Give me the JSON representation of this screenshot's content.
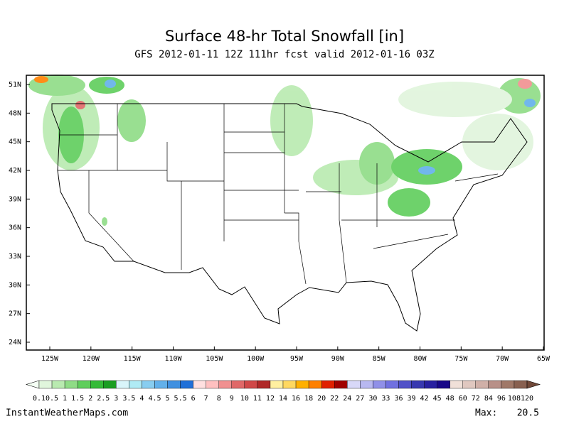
{
  "header": {
    "title": "Surface 48-hr Total Snowfall [in]",
    "subtitle": "GFS 2012-01-11 12Z 111hr fcst valid 2012-01-16 03Z"
  },
  "map": {
    "lat_labels": [
      "51N",
      "48N",
      "45N",
      "42N",
      "39N",
      "36N",
      "33N",
      "30N",
      "27N",
      "24N"
    ],
    "lon_labels": [
      "125W",
      "120W",
      "115W",
      "110W",
      "105W",
      "100W",
      "95W",
      "90W",
      "85W",
      "80W",
      "75W",
      "70W",
      "65W"
    ]
  },
  "legend": {
    "labels": [
      "0.1",
      "0.5",
      "1",
      "1.5",
      "2",
      "2.5",
      "3",
      "3.5",
      "4",
      "4.5",
      "5",
      "5.5",
      "6",
      "7",
      "8",
      "9",
      "10",
      "11",
      "12",
      "14",
      "16",
      "18",
      "20",
      "22",
      "24",
      "27",
      "30",
      "33",
      "36",
      "39",
      "42",
      "45",
      "48",
      "60",
      "72",
      "84",
      "96",
      "108",
      "120"
    ],
    "colors": [
      "#e0f5dc",
      "#b9eab0",
      "#8fdc86",
      "#5fce5c",
      "#35bb38",
      "#1a9e22",
      "#d9f5fa",
      "#b0ebf5",
      "#88cdf0",
      "#62b0ea",
      "#4090e0",
      "#2070d8",
      "#ffe0e0",
      "#ffc0c0",
      "#f09090",
      "#e06868",
      "#d04848",
      "#b02828",
      "#fff0a0",
      "#ffd860",
      "#ffb000",
      "#ff8000",
      "#e02000",
      "#a00000",
      "#d8d8f8",
      "#b8b8f0",
      "#9090e8",
      "#7070e0",
      "#5050c8",
      "#3838b0",
      "#2820a0",
      "#180888",
      "#f0e0d8",
      "#e0c8c0",
      "#d0b0a8",
      "#b89088",
      "#a07868",
      "#886050"
    ],
    "low_color": "#f4fff4",
    "high_color": "#704838"
  },
  "footer": {
    "site": "InstantWeatherMaps.com",
    "max_label": "Max:",
    "max_value": "20.5"
  }
}
